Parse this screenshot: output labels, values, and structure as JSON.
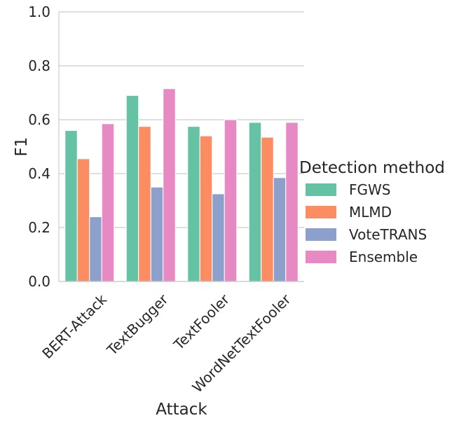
{
  "chart_data": {
    "type": "bar",
    "xlabel": "Attack",
    "ylabel": "F1",
    "ylim": [
      0,
      1.0
    ],
    "yticks": [
      "0.0",
      "0.2",
      "0.4",
      "0.6",
      "0.8",
      "1.0"
    ],
    "grid": true,
    "categories": [
      "BERT-Attack",
      "TextBugger",
      "TextFooler",
      "WordNetTextFooler"
    ],
    "legend": {
      "title": "Detection method",
      "placement": "right"
    },
    "series": [
      {
        "name": "FGWS",
        "color": "#66c2a5",
        "values": [
          0.56,
          0.69,
          0.575,
          0.59
        ]
      },
      {
        "name": "MLMD",
        "color": "#fc8d62",
        "values": [
          0.455,
          0.575,
          0.54,
          0.535
        ]
      },
      {
        "name": "VoteTRANS",
        "color": "#8da0cb",
        "values": [
          0.24,
          0.35,
          0.325,
          0.385
        ]
      },
      {
        "name": "Ensemble",
        "color": "#e78ac3",
        "values": [
          0.585,
          0.715,
          0.6,
          0.59
        ]
      }
    ]
  }
}
